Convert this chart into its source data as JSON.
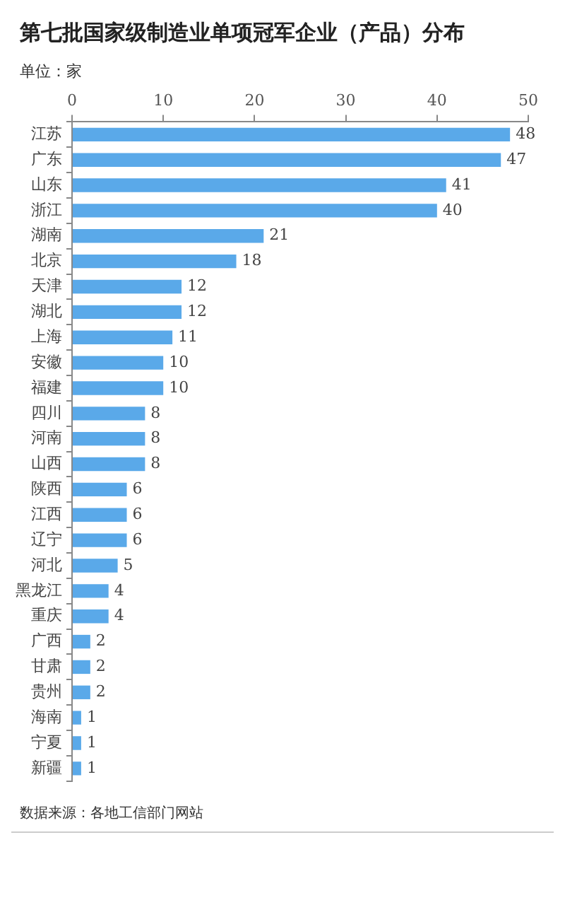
{
  "chart_data": {
    "type": "bar",
    "orientation": "horizontal",
    "title": "第七批国家级制造业单项冠军企业（产品）分布",
    "subtitle": "单位：家",
    "categories": [
      "江苏",
      "广东",
      "山东",
      "浙江",
      "湖南",
      "北京",
      "天津",
      "湖北",
      "上海",
      "安徽",
      "福建",
      "四川",
      "河南",
      "山西",
      "陕西",
      "江西",
      "辽宁",
      "河北",
      "黑龙江",
      "重庆",
      "广西",
      "甘肃",
      "贵州",
      "海南",
      "宁夏",
      "新疆"
    ],
    "values": [
      48,
      47,
      41,
      40,
      21,
      18,
      12,
      12,
      11,
      10,
      10,
      8,
      8,
      8,
      6,
      6,
      6,
      5,
      4,
      4,
      2,
      2,
      2,
      1,
      1,
      1
    ],
    "color": "#5aa9e9",
    "data_labels": true,
    "xlim": [
      0,
      50
    ],
    "xticks": [
      0,
      10,
      20,
      30,
      40,
      50
    ],
    "grid": false,
    "legend": false,
    "annotations": [
      "数据来源：各地工信部门网站"
    ]
  }
}
